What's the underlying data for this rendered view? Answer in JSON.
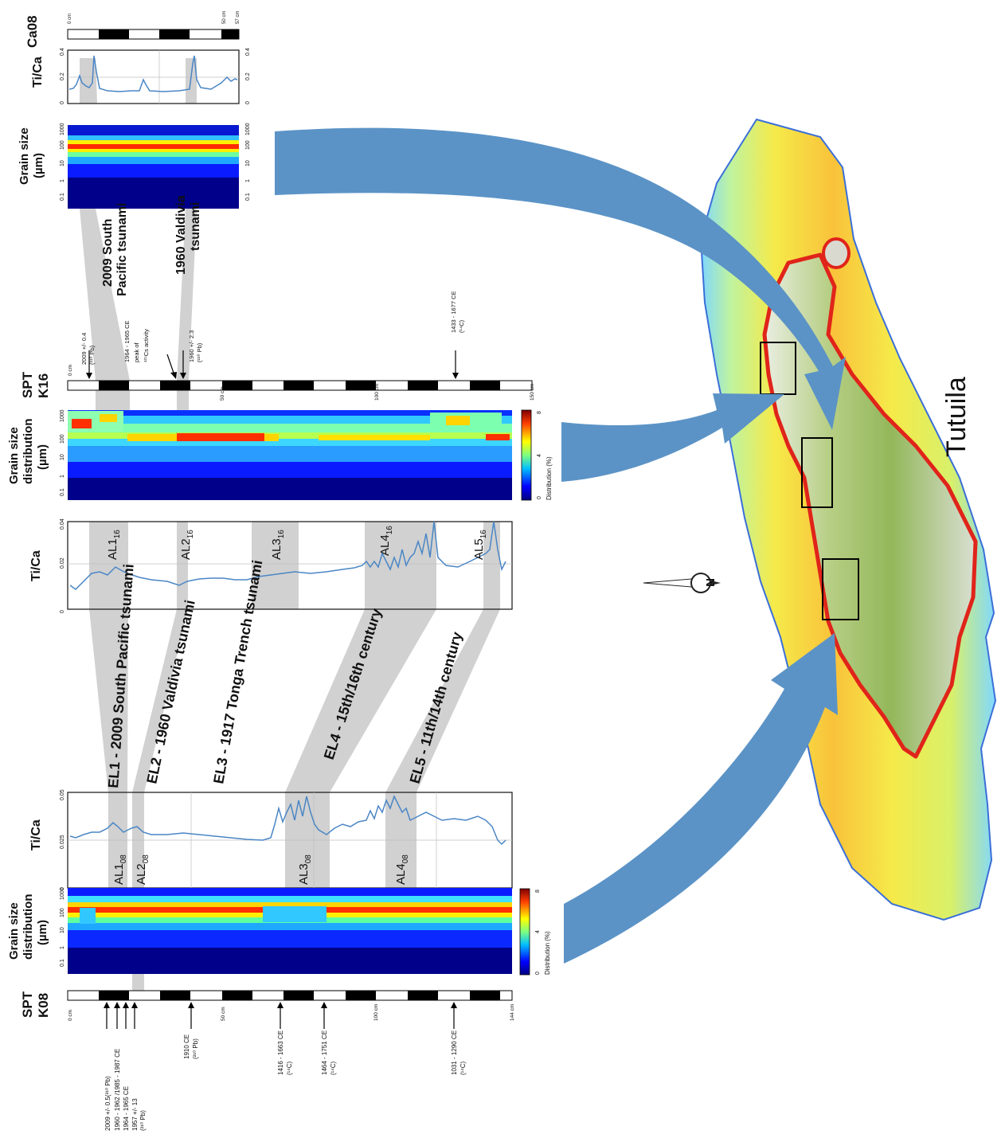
{
  "island": {
    "name": "Tutuila",
    "north": "N"
  },
  "tracks": {
    "ca08_label": [
      "Ca08"
    ],
    "k16_label": [
      "SPT",
      "K16"
    ],
    "k08_label": [
      "SPT",
      "K08"
    ],
    "ti_ca": [
      "Ti/Ca"
    ],
    "grain_size": [
      "Grain size",
      "(µm)"
    ],
    "grain_size_dist": [
      "Grain size",
      "distribution",
      "(µm)"
    ],
    "dist_legend": "Distribution (%)",
    "dist_ticks": [
      "0",
      "4",
      "8"
    ],
    "grain_ticks": [
      "0.1",
      "1",
      "10",
      "100",
      "1000"
    ]
  },
  "ca08": {
    "depth_ticks": [
      "0 cm",
      "50 cm",
      "57 cm"
    ],
    "ti_ticks": [
      "0",
      "0.2",
      "0.4"
    ]
  },
  "k16": {
    "depth_ticks": [
      "0 cm",
      "50 cm",
      "100 cm",
      "150 cm"
    ],
    "ti_ticks": [
      "0",
      "0.02",
      "0.04"
    ],
    "ages": [
      {
        "lines": [
          "2009 +/- 0.4",
          "(²¹⁰ Pb)"
        ]
      },
      {
        "lines": [
          "1964 - 1965 CE",
          "peak of",
          "¹³⁷Cs activity"
        ]
      },
      {
        "lines": [
          "1960 +/- 2.3",
          "(²¹⁰ Pb)"
        ]
      },
      {
        "lines": [
          "1433 - 1677 CE",
          "(¹⁴C)"
        ]
      }
    ],
    "events": [
      "2009 South",
      "Pacific tsunami",
      "1960 Valdivia",
      "tsunami"
    ],
    "layers": [
      {
        "base": "AL1",
        "sub": "16"
      },
      {
        "base": "AL2",
        "sub": "16"
      },
      {
        "base": "AL3",
        "sub": "16"
      },
      {
        "base": "AL4",
        "sub": "16"
      },
      {
        "base": "AL5",
        "sub": "16"
      }
    ]
  },
  "k08": {
    "depth_ticks": [
      "0 cm",
      "50 cm",
      "100 cm",
      "144 cm"
    ],
    "ti_ticks": [
      "0",
      "0.025",
      "0.05"
    ],
    "ages": [
      {
        "lines": [
          "2009 +/- 0.5(²¹⁰ Pb)",
          "1960 - 1962 /1985 - 1987 CE",
          "1964 - 1965 CE",
          "1957 +/- 13",
          "(²¹⁰ Pb)"
        ]
      },
      {
        "lines": [
          "1910 CE",
          "(²¹⁰ Pb)"
        ]
      },
      {
        "lines": [
          "1416 - 1663 CE",
          "(¹⁴C)"
        ]
      },
      {
        "lines": [
          "1464 - 1751 CE",
          "(¹⁴C)"
        ]
      },
      {
        "lines": [
          "1031 - 1290 CE",
          "(¹⁴C)"
        ]
      }
    ],
    "layers": [
      {
        "base": "AL1",
        "sub": "08"
      },
      {
        "base": "AL2",
        "sub": "08"
      },
      {
        "base": "AL3",
        "sub": "08"
      },
      {
        "base": "AL4",
        "sub": "08"
      }
    ]
  },
  "event_layers": [
    "EL1 - 2009 South Pacific tsunami",
    "EL2 - 1960 Valdivia tsunami",
    "EL3 - 1917 Tonga Trench tsunami",
    "EL4 - 15th/16th century",
    "EL5 - 11th/14th century"
  ],
  "colors": {
    "arrow": "#5b93c6",
    "series": "#4a86c5",
    "correlation": "#c9c9c9"
  }
}
